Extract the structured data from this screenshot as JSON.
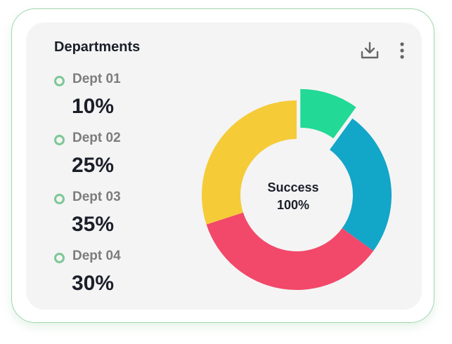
{
  "card": {
    "title": "Departments"
  },
  "icons": {
    "download": "download-icon",
    "more": "more-vertical-icon"
  },
  "colors": {
    "marker": "#7ec796",
    "slices": [
      "#22d996",
      "#12a6c8",
      "#f2486a",
      "#f5cb38"
    ]
  },
  "chart_data": {
    "type": "pie",
    "variant": "donut",
    "categories": [
      "Dept 01",
      "Dept 02",
      "Dept 03",
      "Dept 04"
    ],
    "values": [
      10,
      25,
      35,
      30
    ],
    "value_labels": [
      "10%",
      "25%",
      "35%",
      "30%"
    ],
    "center_text": [
      "Success",
      "100%"
    ],
    "legend_position": "left",
    "exploded_slice": "Dept 01"
  }
}
